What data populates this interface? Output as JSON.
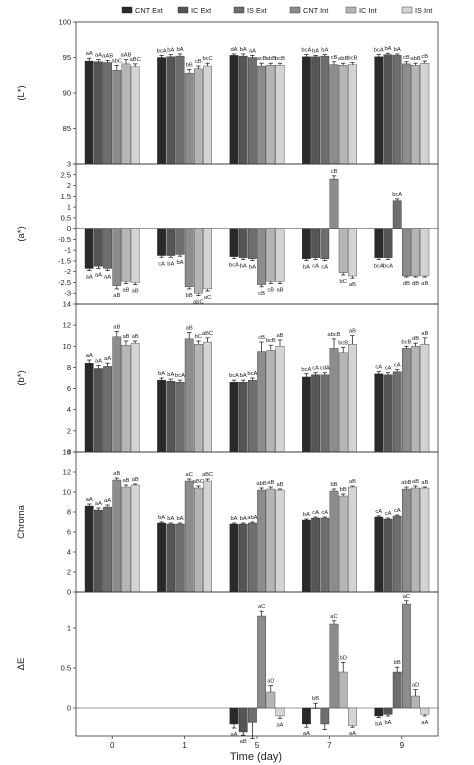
{
  "chart_data": {
    "type": "bar",
    "xlabel": "Time (day)",
    "categories": [
      "0",
      "1",
      "5",
      "7",
      "9"
    ],
    "series_names": [
      "CNT Ext",
      "IC Ext",
      "IS Ext",
      "CNT Int",
      "IC Int",
      "IS Int"
    ],
    "colors": [
      "#2a2a2a",
      "#555555",
      "#6e6e6e",
      "#8c8c8c",
      "#b5b5b5",
      "#d4d4d4"
    ],
    "panels": [
      {
        "ylabel": "(L*)",
        "ylim": [
          80,
          100
        ],
        "yticks": [
          80,
          85,
          90,
          95,
          100
        ],
        "ytick_labels": [
          "",
          "85",
          "90",
          "95",
          "100"
        ],
        "values": [
          [
            94.5,
            94.4,
            94.3,
            93.2,
            94.1,
            93.7
          ],
          [
            95.0,
            95.1,
            95.2,
            92.8,
            93.4,
            93.8
          ],
          [
            95.3,
            95.2,
            95.0,
            93.8,
            93.9,
            93.9
          ],
          [
            95.1,
            95.1,
            95.2,
            94.0,
            93.9,
            94.0
          ],
          [
            95.1,
            95.4,
            95.3,
            94.1,
            93.9,
            94.2
          ]
        ],
        "errors": [
          [
            0.4,
            0.3,
            0.3,
            0.7,
            0.6,
            0.4
          ],
          [
            0.3,
            0.3,
            0.3,
            0.5,
            0.4,
            0.4
          ],
          [
            0.2,
            0.3,
            0.3,
            0.4,
            0.3,
            0.3
          ],
          [
            0.3,
            0.2,
            0.2,
            0.4,
            0.3,
            0.3
          ],
          [
            0.3,
            0.2,
            0.2,
            0.3,
            0.3,
            0.3
          ]
        ],
        "labels": [
          [
            "aA",
            "aA",
            "aAB",
            "abC",
            "aAB",
            "aBC"
          ],
          [
            "bcA",
            "bA",
            "bA",
            "bB",
            "cB",
            "bcC"
          ],
          [
            "dA",
            "bA",
            "aA",
            "acB",
            "abB",
            "bcB"
          ],
          [
            "bcA",
            "bA",
            "bA",
            "cB",
            "abB",
            "bcB"
          ],
          [
            "bcA",
            "bA",
            "bA",
            "cB",
            "abB",
            "cB"
          ]
        ]
      },
      {
        "ylabel": "(a*)",
        "ylim": [
          -3.5,
          3
        ],
        "yticks": [
          -3,
          -2.5,
          -2,
          -1.5,
          -1,
          -0.5,
          0,
          0.5,
          1,
          1.5,
          2,
          2.5,
          3
        ],
        "ytick_labels": [
          "-3",
          "-2.5",
          "-2",
          "-1.5",
          "-1",
          "-0.5",
          "0",
          "0.5",
          "1",
          "1.5",
          "2",
          "2.5",
          "3"
        ],
        "values": [
          [
            -1.85,
            -1.75,
            -1.85,
            -2.65,
            -2.45,
            -2.5
          ],
          [
            -1.25,
            -1.25,
            -1.2,
            -2.7,
            -3.0,
            -2.8
          ],
          [
            -1.3,
            -1.35,
            -1.4,
            -2.6,
            -2.45,
            -2.45
          ],
          [
            -1.4,
            -1.35,
            -1.4,
            2.3,
            -2.05,
            -2.2
          ],
          [
            -1.35,
            -1.35,
            1.3,
            -2.2,
            -2.2,
            -2.2
          ]
        ],
        "errors": [
          [
            0.1,
            0.1,
            0.1,
            0.15,
            0.1,
            0.1
          ],
          [
            0.08,
            0.08,
            0.08,
            0.1,
            0.1,
            0.1
          ],
          [
            0.08,
            0.08,
            0.08,
            0.1,
            0.1,
            0.1
          ],
          [
            0.08,
            0.08,
            0.08,
            0.15,
            0.1,
            0.1
          ],
          [
            0.08,
            0.08,
            0.08,
            0.05,
            0.05,
            0.05
          ]
        ],
        "labels": [
          [
            "aA",
            "aA",
            "aA",
            "aB",
            "aB",
            "aB"
          ],
          [
            "cA",
            "bA",
            "bA",
            "bB",
            "abC",
            "aC"
          ],
          [
            "bcA",
            "bA",
            "bA",
            "cB",
            "cB",
            "aB"
          ],
          [
            "bA",
            "cA",
            "cA",
            "cB",
            "bC",
            "aB"
          ],
          [
            "bcA",
            "bcA",
            "bcA",
            "dB",
            "dB",
            "aB"
          ]
        ]
      },
      {
        "ylabel": "(b*)",
        "ylim": [
          0,
          14
        ],
        "yticks": [
          0,
          2,
          4,
          6,
          8,
          10,
          12,
          14
        ],
        "ytick_labels": [
          "0",
          "2",
          "4",
          "6",
          "8",
          "10",
          "12",
          "14"
        ],
        "values": [
          [
            8.4,
            7.9,
            8.1,
            10.9,
            10.1,
            10.3
          ],
          [
            6.8,
            6.7,
            6.6,
            10.7,
            10.2,
            10.4
          ],
          [
            6.6,
            6.6,
            6.8,
            9.5,
            9.6,
            10.0
          ],
          [
            7.1,
            7.3,
            7.3,
            9.8,
            9.4,
            10.2
          ],
          [
            7.4,
            7.3,
            7.6,
            9.8,
            10.0,
            10.2
          ]
        ],
        "errors": [
          [
            0.3,
            0.3,
            0.3,
            0.5,
            0.4,
            0.2
          ],
          [
            0.2,
            0.2,
            0.2,
            0.6,
            0.3,
            0.4
          ],
          [
            0.2,
            0.2,
            0.2,
            0.9,
            0.5,
            0.6
          ],
          [
            0.3,
            0.2,
            0.2,
            0.9,
            0.5,
            0.8
          ],
          [
            0.2,
            0.2,
            0.2,
            0.2,
            0.3,
            0.6
          ]
        ],
        "labels": [
          [
            "aA",
            "aA",
            "aA",
            "aB",
            "aB",
            "aB"
          ],
          [
            "bA",
            "bA",
            "bcA",
            "aB",
            "bC",
            "aBC"
          ],
          [
            "bcA",
            "bA",
            "bcA",
            "cB",
            "bcB",
            "aB"
          ],
          [
            "bcA",
            "cA",
            "cdA",
            "abcB",
            "bcB",
            "aB"
          ],
          [
            "cA",
            "cA",
            "cA",
            "bcB",
            "dB",
            "aB"
          ]
        ]
      },
      {
        "ylabel": "Chroma",
        "ylim": [
          0,
          14
        ],
        "yticks": [
          0,
          2,
          4,
          6,
          8,
          10,
          12,
          14
        ],
        "ytick_labels": [
          "0",
          "2",
          "4",
          "6",
          "8",
          "10",
          "12",
          "14"
        ],
        "values": [
          [
            8.6,
            8.2,
            8.5,
            11.2,
            10.5,
            10.7
          ],
          [
            6.9,
            6.8,
            6.8,
            11.1,
            10.4,
            11.1
          ],
          [
            6.8,
            6.8,
            6.9,
            10.2,
            10.3,
            10.2
          ],
          [
            7.2,
            7.4,
            7.4,
            10.1,
            9.6,
            10.5
          ],
          [
            7.5,
            7.3,
            7.6,
            10.3,
            10.4,
            10.4
          ]
        ],
        "errors": [
          [
            0.2,
            0.2,
            0.2,
            0.2,
            0.2,
            0.1
          ],
          [
            0.1,
            0.1,
            0.1,
            0.2,
            0.2,
            0.2
          ],
          [
            0.1,
            0.1,
            0.1,
            0.2,
            0.2,
            0.1
          ],
          [
            0.1,
            0.1,
            0.1,
            0.2,
            0.2,
            0.1
          ],
          [
            0.1,
            0.1,
            0.1,
            0.2,
            0.2,
            0.1
          ]
        ],
        "labels": [
          [
            "aA",
            "aA",
            "aA",
            "aB",
            "aB",
            "aB"
          ],
          [
            "bA",
            "bA",
            "bA",
            "aC",
            "aBC",
            "aBC"
          ],
          [
            "bA",
            "bA",
            "abA",
            "abB",
            "aB",
            "aB"
          ],
          [
            "bA",
            "cA",
            "cA",
            "bB",
            "bB",
            "aB"
          ],
          [
            "cA",
            "cA",
            "cA",
            "abB",
            "aB",
            "aB"
          ]
        ]
      },
      {
        "ylabel": "ΔE",
        "ylim": [
          -0.35,
          1.45
        ],
        "yticks": [
          0,
          0.5,
          1
        ],
        "ytick_labels": [
          "0",
          "0.5",
          "1"
        ],
        "values": [
          [
            null,
            null,
            null,
            null,
            null,
            null
          ],
          [
            null,
            null,
            null,
            null,
            null,
            null
          ],
          [
            -0.2,
            -0.3,
            -0.18,
            1.15,
            0.2,
            -0.1
          ],
          [
            -0.2,
            0.0,
            -0.2,
            1.05,
            0.45,
            -0.22
          ],
          [
            -0.1,
            -0.08,
            0.45,
            1.3,
            0.15,
            -0.08
          ]
        ],
        "errors": [
          [
            0,
            0,
            0,
            0,
            0,
            0
          ],
          [
            0,
            0,
            0,
            0,
            0,
            0
          ],
          [
            0.05,
            0.04,
            0.2,
            0.06,
            0.08,
            0.03
          ],
          [
            0.04,
            0.06,
            0.07,
            0.04,
            0.12,
            0.02
          ],
          [
            0.02,
            0.02,
            0.06,
            0.04,
            0.08,
            0.02
          ]
        ],
        "labels": [
          [
            "",
            "",
            "",
            "",
            "",
            ""
          ],
          [
            "",
            "",
            "",
            "",
            "",
            ""
          ],
          [
            "aA",
            "aB",
            "",
            "aC",
            "aD",
            "aA"
          ],
          [
            "aA",
            "bB",
            "",
            "aC",
            "bD",
            "aA"
          ],
          [
            "bA",
            "bA",
            "bB",
            "aC",
            "aD",
            "aA"
          ]
        ]
      }
    ]
  }
}
